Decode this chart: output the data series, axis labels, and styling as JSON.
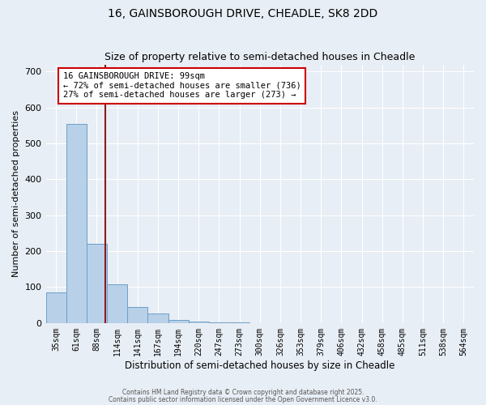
{
  "title1": "16, GAINSBOROUGH DRIVE, CHEADLE, SK8 2DD",
  "title2": "Size of property relative to semi-detached houses in Cheadle",
  "xlabel": "Distribution of semi-detached houses by size in Cheadle",
  "ylabel": "Number of semi-detached properties",
  "categories": [
    "35sqm",
    "61sqm",
    "88sqm",
    "114sqm",
    "141sqm",
    "167sqm",
    "194sqm",
    "220sqm",
    "247sqm",
    "273sqm",
    "300sqm",
    "326sqm",
    "353sqm",
    "379sqm",
    "406sqm",
    "432sqm",
    "458sqm",
    "485sqm",
    "511sqm",
    "538sqm",
    "564sqm"
  ],
  "values": [
    85,
    555,
    220,
    107,
    44,
    27,
    9,
    5,
    2,
    1,
    0,
    0,
    0,
    0,
    0,
    0,
    0,
    0,
    0,
    0,
    0
  ],
  "bar_color": "#b8d0e8",
  "bar_edge_color": "#6aa0c8",
  "property_line_x": 2.42,
  "property_line_color": "#8b1a1a",
  "annotation_box_color": "#cc0000",
  "annotation_title": "16 GAINSBOROUGH DRIVE: 99sqm",
  "annotation_line1": "← 72% of semi-detached houses are smaller (736)",
  "annotation_line2": "27% of semi-detached houses are larger (273) →",
  "ylim": [
    0,
    720
  ],
  "yticks": [
    0,
    100,
    200,
    300,
    400,
    500,
    600,
    700
  ],
  "bg_color": "#e8eef5",
  "grid_color": "#ffffff",
  "footnote1": "Contains HM Land Registry data © Crown copyright and database right 2025.",
  "footnote2": "Contains public sector information licensed under the Open Government Licence v3.0."
}
